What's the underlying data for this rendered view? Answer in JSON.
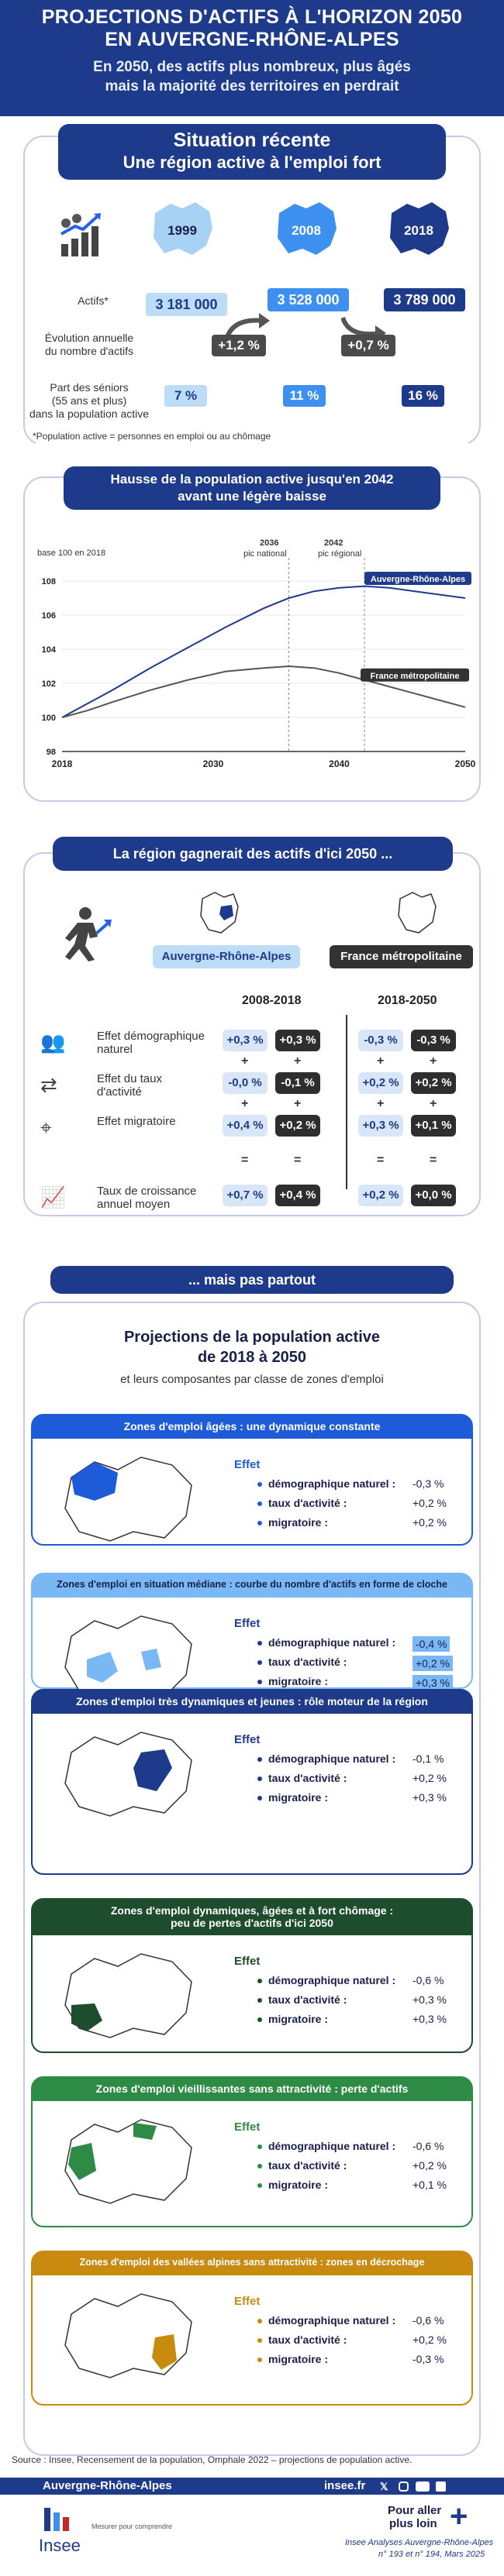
{
  "header": {
    "title1": "PROJECTIONS D'ACTIFS À L'HORIZON 2050",
    "title2": "EN AUVERGNE-RHÔNE-ALPES",
    "subtitle1": "En 2050, des actifs plus nombreux, plus âgés",
    "subtitle2": "mais la majorité des territoires en perdrait"
  },
  "situation": {
    "title1": "Situation récente",
    "title2": "Une région active à l'emploi fort",
    "years": [
      "1999",
      "2008",
      "2018"
    ],
    "actifs_label": "Actifs*",
    "actifs": [
      "3 181 000",
      "3 528 000",
      "3 789 000"
    ],
    "evol_label1": "Évolution annuelle",
    "evol_label2": "du nombre d'actifs",
    "evol": [
      "+1,2 %",
      "+0,7 %"
    ],
    "seniors_label1": "Part des séniors",
    "seniors_label2": "(55 ans et plus)",
    "seniors_label3": "dans la population active",
    "seniors": [
      "7 %",
      "11 %",
      "16 %"
    ],
    "note": "*Population active = personnes en emploi ou au chômage"
  },
  "chart_section": {
    "title1": "Hausse de la population active jusqu'en 2042",
    "title2": "avant une légère baisse",
    "base_note": "base 100 en 2018",
    "ann1a": "2036",
    "ann1b": "pic national",
    "ann2a": "2042",
    "ann2b": "pic régional"
  },
  "chart_data": {
    "type": "line",
    "xlim": [
      2018,
      2050
    ],
    "ylim": [
      98,
      108
    ],
    "yticks": [
      "98",
      "100",
      "102",
      "104",
      "106",
      "108"
    ],
    "xticks": [
      "2018",
      "2030",
      "2040",
      "2050"
    ],
    "series": [
      {
        "name": "Auvergne-Rhône-Alpes",
        "color": "#1e3a8a",
        "x": [
          2018,
          2020,
          2022,
          2025,
          2028,
          2031,
          2034,
          2036,
          2038,
          2040,
          2042,
          2044,
          2046,
          2048,
          2050
        ],
        "y": [
          100,
          100.8,
          101.6,
          102.9,
          104.1,
          105.3,
          106.4,
          107.0,
          107.4,
          107.6,
          107.7,
          107.6,
          107.4,
          107.2,
          107.0
        ]
      },
      {
        "name": "France métropolitaine",
        "color": "#555555",
        "x": [
          2018,
          2020,
          2022,
          2025,
          2028,
          2031,
          2034,
          2036,
          2038,
          2040,
          2042,
          2044,
          2046,
          2048,
          2050
        ],
        "y": [
          100,
          100.4,
          100.9,
          101.6,
          102.2,
          102.7,
          102.9,
          103.0,
          102.9,
          102.6,
          102.2,
          101.8,
          101.4,
          101.0,
          100.6
        ]
      }
    ]
  },
  "gain": {
    "title": "La région gagnerait des actifs d'ici 2050 ...",
    "region_label": "Auvergne-Rhône-Alpes",
    "france_label": "France métropolitaine",
    "period1": "2008-2018",
    "period2": "2018-2050",
    "rows": [
      {
        "label1": "Effet démographique",
        "label2": "naturel",
        "v": [
          "+0,3 %",
          "+0,3 %",
          "-0,3 %",
          "-0,3 %"
        ]
      },
      {
        "label1": "Effet du taux",
        "label2": "d'activité",
        "v": [
          "-0,0 %",
          "-0,1 %",
          "+0,2 %",
          "+0,2 %"
        ]
      },
      {
        "label1": "Effet migratoire",
        "label2": "",
        "v": [
          "+0,4 %",
          "+0,2 %",
          "+0,3 %",
          "+0,1 %"
        ]
      },
      {
        "label1": "Taux de croissance",
        "label2": "annuel moyen",
        "v": [
          "+0,7 %",
          "+0,4 %",
          "+0,2 %",
          "+0,0 %"
        ]
      }
    ],
    "plus": "+",
    "equals": "="
  },
  "pas_partout": {
    "title": "... mais pas partout",
    "proj_title1": "Projections de la population active",
    "proj_title2": "de 2018 à 2050",
    "proj_sub": "et leurs composantes par classe de zones d'emploi",
    "effet": "Effet",
    "lab_demo": "démographique naturel :",
    "lab_taux": "taux d'activité :",
    "lab_migr": "migratoire :",
    "zones": [
      {
        "title": "Zones d'emploi âgées : une dynamique constante",
        "title2": "",
        "values": [
          "-0,3 %",
          "+0,2 %",
          "+0,2 %"
        ],
        "color": "#1e5bd8"
      },
      {
        "title": "Zones d'emploi en situation médiane : courbe du nombre d'actifs en forme de cloche",
        "title2": "",
        "values": [
          "-0,4 %",
          "+0,2 %",
          "+0,3 %"
        ],
        "color": "#7ab8f5"
      },
      {
        "title": "Zones d'emploi très dynamiques et jeunes : rôle moteur de la région",
        "title2": "",
        "values": [
          "-0,1 %",
          "+0,2 %",
          "+0,3 %"
        ],
        "color": "#1e3a8a"
      },
      {
        "title": "Zones d'emploi dynamiques, âgées et à fort chômage :",
        "title2": "peu de pertes d'actifs d'ici 2050",
        "values": [
          "-0,6 %",
          "+0,3 %",
          "+0,3 %"
        ],
        "color": "#1d4d2c"
      },
      {
        "title": "Zones d'emploi vieillissantes sans attractivité : perte d'actifs",
        "title2": "",
        "values": [
          "-0,6 %",
          "+0,2 %",
          "+0,1 %"
        ],
        "color": "#2e8b45"
      },
      {
        "title": "Zones d'emploi des vallées alpines sans attractivité : zones en décrochage",
        "title2": "",
        "values": [
          "-0,6 %",
          "+0,2 %",
          "-0,3 %"
        ],
        "color": "#c98a10"
      }
    ]
  },
  "source": "Source : Insee, Recensement de la population, Omphale 2022 – projections de population active.",
  "footer": {
    "region": "Auvergne-Rhône-Alpes",
    "site": "insee.fr",
    "logo": "Insee",
    "tagline": "Mesurer pour comprendre",
    "more1": "Pour aller",
    "more2": "plus loin",
    "pub1": "Insee Analyses Auvergne-Rhône-Alpes",
    "pub2": "n° 193 et n° 194, Mars 2025"
  }
}
